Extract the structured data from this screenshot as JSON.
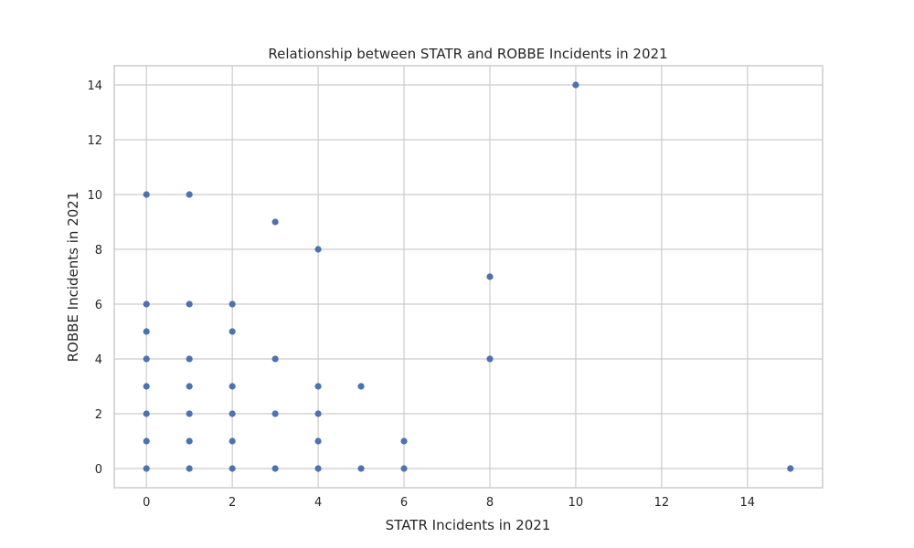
{
  "chart_data": {
    "type": "scatter",
    "title": "Relationship between STATR and ROBBE Incidents in 2021",
    "xlabel": "STATR Incidents in 2021",
    "ylabel": "ROBBE Incidents in 2021",
    "xlim": [
      -0.75,
      15.75
    ],
    "ylim": [
      -0.7,
      14.7
    ],
    "xticks": [
      0,
      2,
      4,
      6,
      8,
      10,
      12,
      14
    ],
    "yticks": [
      0,
      2,
      4,
      6,
      8,
      10,
      12,
      14
    ],
    "grid": true,
    "marker_color": "#4c72b0",
    "points": [
      {
        "x": 0,
        "y": 10
      },
      {
        "x": 0,
        "y": 6
      },
      {
        "x": 0,
        "y": 5
      },
      {
        "x": 0,
        "y": 4
      },
      {
        "x": 0,
        "y": 3
      },
      {
        "x": 0,
        "y": 2
      },
      {
        "x": 0,
        "y": 1
      },
      {
        "x": 0,
        "y": 0
      },
      {
        "x": 1,
        "y": 10
      },
      {
        "x": 1,
        "y": 6
      },
      {
        "x": 1,
        "y": 4
      },
      {
        "x": 1,
        "y": 3
      },
      {
        "x": 1,
        "y": 2
      },
      {
        "x": 1,
        "y": 1
      },
      {
        "x": 1,
        "y": 0
      },
      {
        "x": 2,
        "y": 6
      },
      {
        "x": 2,
        "y": 5
      },
      {
        "x": 2,
        "y": 3
      },
      {
        "x": 2,
        "y": 2
      },
      {
        "x": 2,
        "y": 1
      },
      {
        "x": 2,
        "y": 0
      },
      {
        "x": 3,
        "y": 9
      },
      {
        "x": 3,
        "y": 4
      },
      {
        "x": 3,
        "y": 2
      },
      {
        "x": 3,
        "y": 0
      },
      {
        "x": 4,
        "y": 8
      },
      {
        "x": 4,
        "y": 3
      },
      {
        "x": 4,
        "y": 2
      },
      {
        "x": 4,
        "y": 1
      },
      {
        "x": 4,
        "y": 0
      },
      {
        "x": 5,
        "y": 3
      },
      {
        "x": 5,
        "y": 0
      },
      {
        "x": 6,
        "y": 1
      },
      {
        "x": 6,
        "y": 0
      },
      {
        "x": 8,
        "y": 7
      },
      {
        "x": 8,
        "y": 4
      },
      {
        "x": 10,
        "y": 14
      },
      {
        "x": 15,
        "y": 0
      }
    ]
  }
}
